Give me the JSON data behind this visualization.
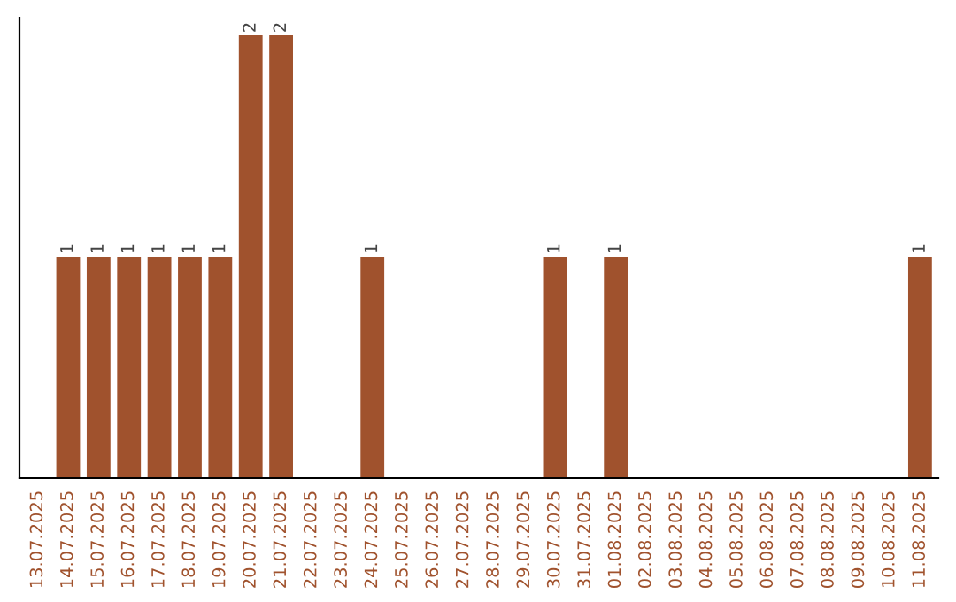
{
  "chart_data": {
    "type": "bar",
    "categories": [
      "13.07.2025",
      "14.07.2025",
      "15.07.2025",
      "16.07.2025",
      "17.07.2025",
      "18.07.2025",
      "19.07.2025",
      "20.07.2025",
      "21.07.2025",
      "22.07.2025",
      "23.07.2025",
      "24.07.2025",
      "25.07.2025",
      "26.07.2025",
      "27.07.2025",
      "28.07.2025",
      "29.07.2025",
      "30.07.2025",
      "31.07.2025",
      "01.08.2025",
      "02.08.2025",
      "03.08.2025",
      "04.08.2025",
      "05.08.2025",
      "06.08.2025",
      "07.08.2025",
      "08.08.2025",
      "09.08.2025",
      "10.08.2025",
      "11.08.2025"
    ],
    "values": [
      0,
      1,
      1,
      1,
      1,
      1,
      1,
      2,
      2,
      0,
      0,
      1,
      0,
      0,
      0,
      0,
      0,
      1,
      0,
      1,
      0,
      0,
      0,
      0,
      0,
      0,
      0,
      0,
      0,
      1
    ],
    "value_labels": [
      null,
      "1",
      "1",
      "1",
      "1",
      "1",
      "1",
      "2",
      "2",
      null,
      null,
      "1",
      null,
      null,
      null,
      null,
      null,
      "1",
      null,
      "1",
      null,
      null,
      null,
      null,
      null,
      null,
      null,
      null,
      null,
      "1"
    ],
    "color": "#a0522d",
    "ylim": [
      0,
      2.08
    ],
    "tick_labels": "x",
    "grid": false,
    "legend": false
  }
}
